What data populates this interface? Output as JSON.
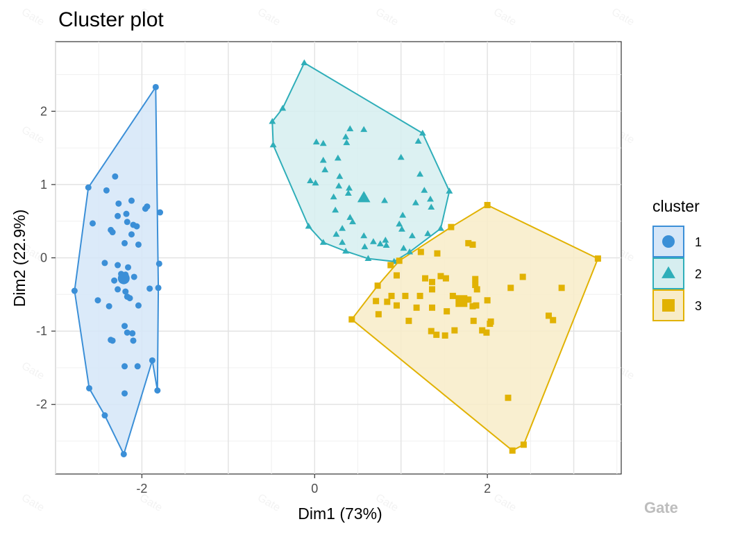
{
  "watermark": "Gate",
  "chart_data": {
    "type": "scatter",
    "title": "Cluster plot",
    "xlabel": "Dim1 (73%)",
    "ylabel": "Dim2 (22.9%)",
    "xlim": [
      -3.0,
      3.55
    ],
    "ylim": [
      -2.95,
      2.95
    ],
    "xticks": [
      -2,
      0,
      2
    ],
    "yticks": [
      -2,
      -1,
      0,
      1,
      2
    ],
    "grid": true,
    "legend_title": "cluster",
    "legend_position": "right",
    "series": [
      {
        "name": "1",
        "color": "#3B8FD7",
        "fill": "#D5E6F8",
        "marker": "circle",
        "centroid": [
          -2.21,
          -0.28
        ],
        "hull": [
          [
            -1.84,
            2.33
          ],
          [
            -1.81,
            -0.41
          ],
          [
            -1.82,
            -1.81
          ],
          [
            -1.88,
            -1.4
          ],
          [
            -2.21,
            -2.68
          ],
          [
            -2.43,
            -2.15
          ],
          [
            -2.61,
            -1.78
          ],
          [
            -2.78,
            -0.45
          ],
          [
            -2.62,
            0.96
          ]
        ],
        "points": [
          [
            -1.84,
            2.33
          ],
          [
            -2.62,
            0.96
          ],
          [
            -2.78,
            -0.45
          ],
          [
            -2.61,
            -1.78
          ],
          [
            -2.43,
            -2.15
          ],
          [
            -2.21,
            -2.68
          ],
          [
            -1.88,
            -1.4
          ],
          [
            -1.82,
            -1.81
          ],
          [
            -1.81,
            -0.41
          ],
          [
            -2.31,
            1.11
          ],
          [
            -2.41,
            0.92
          ],
          [
            -2.12,
            0.78
          ],
          [
            -2.27,
            0.74
          ],
          [
            -1.94,
            0.7
          ],
          [
            -1.96,
            0.67
          ],
          [
            -2.28,
            0.57
          ],
          [
            -2.18,
            0.6
          ],
          [
            -1.79,
            0.62
          ],
          [
            -2.57,
            0.47
          ],
          [
            -2.17,
            0.49
          ],
          [
            -2.1,
            0.45
          ],
          [
            -2.06,
            0.43
          ],
          [
            -2.36,
            0.38
          ],
          [
            -2.34,
            0.35
          ],
          [
            -2.12,
            0.32
          ],
          [
            -2.2,
            0.2
          ],
          [
            -2.04,
            0.18
          ],
          [
            -2.43,
            -0.07
          ],
          [
            -2.28,
            -0.1
          ],
          [
            -2.16,
            -0.13
          ],
          [
            -1.8,
            -0.08
          ],
          [
            -2.24,
            -0.22
          ],
          [
            -2.19,
            -0.23
          ],
          [
            -2.09,
            -0.26
          ],
          [
            -2.32,
            -0.31
          ],
          [
            -1.91,
            -0.42
          ],
          [
            -2.19,
            -0.46
          ],
          [
            -2.28,
            -0.43
          ],
          [
            -2.17,
            -0.53
          ],
          [
            -2.14,
            -0.55
          ],
          [
            -2.51,
            -0.58
          ],
          [
            -2.38,
            -0.66
          ],
          [
            -2.04,
            -0.65
          ],
          [
            -2.2,
            -0.93
          ],
          [
            -2.17,
            -1.02
          ],
          [
            -2.11,
            -1.03
          ],
          [
            -2.36,
            -1.12
          ],
          [
            -2.34,
            -1.13
          ],
          [
            -2.1,
            -1.13
          ],
          [
            -2.2,
            -1.48
          ],
          [
            -2.05,
            -1.48
          ],
          [
            -2.2,
            -1.85
          ]
        ]
      },
      {
        "name": "2",
        "color": "#2FAEB9",
        "fill": "#D6EEF0",
        "marker": "triangle",
        "centroid": [
          0.57,
          0.82
        ],
        "hull": [
          [
            -0.12,
            2.66
          ],
          [
            1.25,
            1.7
          ],
          [
            1.56,
            0.91
          ],
          [
            1.46,
            0.4
          ],
          [
            1.1,
            0.08
          ],
          [
            0.92,
            -0.05
          ],
          [
            0.62,
            -0.01
          ],
          [
            0.36,
            0.09
          ],
          [
            0.1,
            0.21
          ],
          [
            -0.07,
            0.43
          ],
          [
            -0.48,
            1.54
          ],
          [
            -0.49,
            1.86
          ],
          [
            -0.37,
            2.04
          ]
        ],
        "points": [
          [
            -0.12,
            2.66
          ],
          [
            -0.37,
            2.04
          ],
          [
            -0.49,
            1.86
          ],
          [
            -0.48,
            1.54
          ],
          [
            -0.07,
            0.43
          ],
          [
            0.1,
            0.21
          ],
          [
            0.36,
            0.09
          ],
          [
            0.62,
            -0.01
          ],
          [
            0.92,
            -0.05
          ],
          [
            1.1,
            0.08
          ],
          [
            1.46,
            0.4
          ],
          [
            1.56,
            0.91
          ],
          [
            1.25,
            1.7
          ],
          [
            0.41,
            1.76
          ],
          [
            0.57,
            1.75
          ],
          [
            0.36,
            1.65
          ],
          [
            0.02,
            1.58
          ],
          [
            0.1,
            1.56
          ],
          [
            0.37,
            1.57
          ],
          [
            1.2,
            1.59
          ],
          [
            0.27,
            1.36
          ],
          [
            0.1,
            1.33
          ],
          [
            0.12,
            1.2
          ],
          [
            1.0,
            1.37
          ],
          [
            0.29,
            1.11
          ],
          [
            1.22,
            1.14
          ],
          [
            -0.05,
            1.05
          ],
          [
            0.01,
            1.02
          ],
          [
            0.28,
            0.98
          ],
          [
            0.4,
            0.95
          ],
          [
            0.39,
            0.88
          ],
          [
            1.27,
            0.92
          ],
          [
            0.22,
            0.83
          ],
          [
            0.58,
            0.84
          ],
          [
            1.34,
            0.8
          ],
          [
            0.81,
            0.78
          ],
          [
            1.17,
            0.75
          ],
          [
            1.35,
            0.69
          ],
          [
            0.24,
            0.65
          ],
          [
            0.41,
            0.55
          ],
          [
            1.02,
            0.58
          ],
          [
            0.44,
            0.49
          ],
          [
            0.98,
            0.46
          ],
          [
            0.32,
            0.4
          ],
          [
            1.01,
            0.39
          ],
          [
            0.25,
            0.32
          ],
          [
            1.31,
            0.33
          ],
          [
            0.57,
            0.3
          ],
          [
            0.32,
            0.21
          ],
          [
            1.13,
            0.3
          ],
          [
            0.68,
            0.22
          ],
          [
            0.82,
            0.24
          ],
          [
            0.76,
            0.19
          ],
          [
            0.83,
            0.17
          ],
          [
            0.58,
            0.15
          ],
          [
            1.03,
            0.13
          ]
        ]
      },
      {
        "name": "3",
        "color": "#E1B203",
        "fill": "#F8ECC8",
        "marker": "square",
        "centroid": [
          1.7,
          -0.59
        ],
        "hull": [
          [
            2.0,
            0.72
          ],
          [
            3.28,
            -0.01
          ],
          [
            2.42,
            -2.55
          ],
          [
            2.29,
            -2.63
          ],
          [
            0.43,
            -0.84
          ],
          [
            0.73,
            -0.38
          ],
          [
            0.98,
            -0.04
          ],
          [
            1.58,
            0.42
          ]
        ],
        "points": [
          [
            2.0,
            0.72
          ],
          [
            3.28,
            -0.01
          ],
          [
            2.42,
            -2.55
          ],
          [
            2.29,
            -2.63
          ],
          [
            0.43,
            -0.84
          ],
          [
            0.73,
            -0.38
          ],
          [
            0.98,
            -0.04
          ],
          [
            1.58,
            0.42
          ],
          [
            1.78,
            0.2
          ],
          [
            1.83,
            0.18
          ],
          [
            1.23,
            0.08
          ],
          [
            1.42,
            0.06
          ],
          [
            0.88,
            -0.1
          ],
          [
            0.95,
            -0.24
          ],
          [
            1.28,
            -0.28
          ],
          [
            1.46,
            -0.25
          ],
          [
            1.52,
            -0.28
          ],
          [
            1.86,
            -0.29
          ],
          [
            2.41,
            -0.26
          ],
          [
            1.36,
            -0.33
          ],
          [
            1.86,
            -0.37
          ],
          [
            2.86,
            -0.41
          ],
          [
            1.36,
            -0.43
          ],
          [
            1.88,
            -0.43
          ],
          [
            2.27,
            -0.41
          ],
          [
            1.6,
            -0.52
          ],
          [
            0.89,
            -0.52
          ],
          [
            1.05,
            -0.52
          ],
          [
            1.22,
            -0.52
          ],
          [
            2.0,
            -0.58
          ],
          [
            1.78,
            -0.57
          ],
          [
            0.71,
            -0.59
          ],
          [
            0.84,
            -0.6
          ],
          [
            1.87,
            -0.65
          ],
          [
            1.36,
            -0.68
          ],
          [
            1.83,
            -0.66
          ],
          [
            0.95,
            -0.65
          ],
          [
            1.18,
            -0.68
          ],
          [
            1.53,
            -0.73
          ],
          [
            0.74,
            -0.77
          ],
          [
            2.71,
            -0.79
          ],
          [
            1.84,
            -0.86
          ],
          [
            2.76,
            -0.85
          ],
          [
            2.04,
            -0.87
          ],
          [
            2.03,
            -0.9
          ],
          [
            1.09,
            -0.86
          ],
          [
            1.62,
            -0.99
          ],
          [
            1.35,
            -1.0
          ],
          [
            1.94,
            -0.99
          ],
          [
            1.99,
            -1.02
          ],
          [
            1.51,
            -1.06
          ],
          [
            1.41,
            -1.05
          ],
          [
            2.24,
            -1.91
          ]
        ]
      }
    ]
  }
}
